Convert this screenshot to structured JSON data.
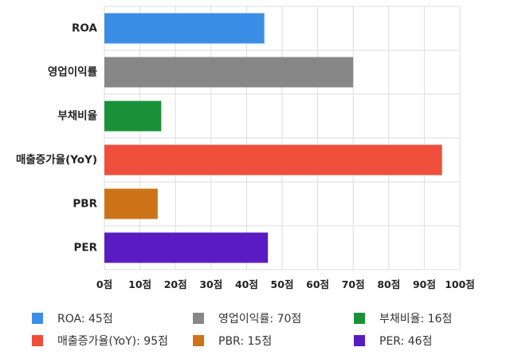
{
  "chart_data": {
    "type": "bar",
    "orientation": "horizontal",
    "categories": [
      "ROA",
      "영업이익률",
      "부채비율",
      "매출증가율(YoY)",
      "PBR",
      "PER"
    ],
    "values": [
      45,
      70,
      16,
      95,
      15,
      46
    ],
    "colors": [
      "#3a8ee6",
      "#878787",
      "#1a9138",
      "#ef4e3a",
      "#cd7419",
      "#5a1bc3"
    ],
    "xlim": [
      0,
      100
    ],
    "ticks": [
      0,
      10,
      20,
      30,
      40,
      50,
      60,
      70,
      80,
      90,
      100
    ],
    "tick_labels": [
      "0점",
      "10점",
      "20점",
      "30점",
      "40점",
      "50점",
      "60점",
      "70점",
      "80점",
      "90점",
      "100점"
    ],
    "grid": true,
    "legend_position": "bottom",
    "legend": [
      {
        "label": "ROA: 45점",
        "color": "#3a8ee6"
      },
      {
        "label": "영업이익률: 70점",
        "color": "#878787"
      },
      {
        "label": "부채비율: 16점",
        "color": "#1a9138"
      },
      {
        "label": "매출증가율(YoY): 95점",
        "color": "#ef4e3a"
      },
      {
        "label": "PBR: 15점",
        "color": "#cd7419"
      },
      {
        "label": "PER: 46점",
        "color": "#5a1bc3"
      }
    ]
  }
}
